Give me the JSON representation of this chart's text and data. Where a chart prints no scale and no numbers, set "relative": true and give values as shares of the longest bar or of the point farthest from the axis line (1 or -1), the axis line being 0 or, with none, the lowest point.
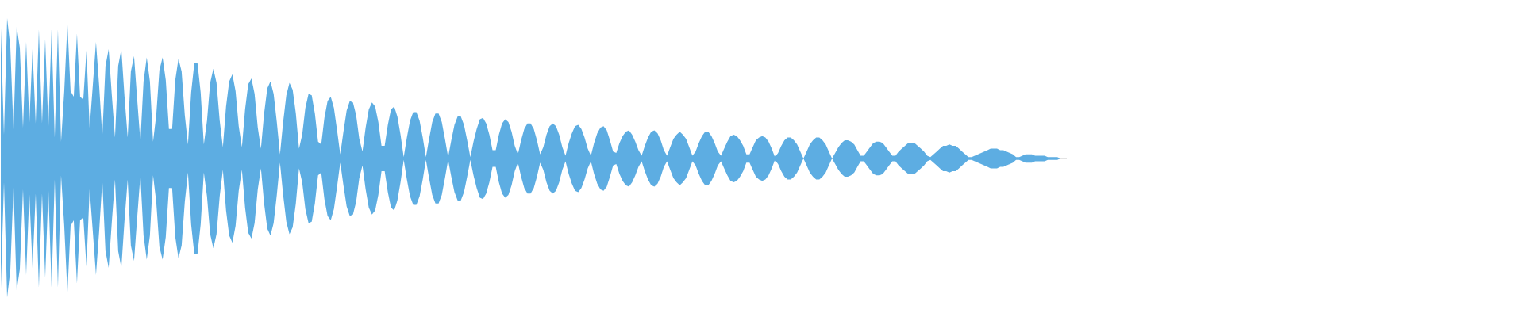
{
  "chart_data": {
    "type": "area",
    "relative": true,
    "categories": [
      null,
      null,
      null,
      null,
      null,
      null,
      null,
      null,
      null,
      null,
      null,
      null,
      null,
      null,
      null,
      null,
      null,
      null,
      null,
      null,
      null,
      null,
      null,
      null,
      null,
      null,
      null,
      null,
      null,
      null,
      null,
      null,
      null,
      null,
      null,
      null,
      null,
      null,
      null,
      null,
      null,
      null,
      null,
      null,
      null,
      null,
      null,
      null,
      null,
      null,
      null,
      null,
      null,
      null,
      null,
      null,
      null,
      null,
      null,
      null,
      null,
      null,
      null,
      null,
      null,
      null,
      null,
      null,
      null,
      null,
      null,
      null,
      null,
      null,
      null,
      null,
      null,
      null,
      null,
      null,
      null,
      null,
      null,
      null,
      null,
      null,
      null,
      null,
      null,
      null,
      null,
      null,
      null,
      null,
      null,
      null,
      null,
      null,
      null,
      null,
      null,
      null,
      null,
      null,
      null,
      null,
      null,
      null,
      null,
      null,
      null,
      null,
      null,
      null,
      null,
      null,
      null,
      null,
      null,
      null,
      null,
      null,
      null,
      null,
      null,
      null,
      null,
      null,
      null,
      null,
      null,
      null,
      null,
      null,
      null,
      null,
      null,
      null,
      null,
      null,
      null,
      null,
      null,
      null,
      null,
      null,
      null,
      null,
      null,
      null,
      null,
      null,
      null,
      null,
      null,
      null,
      null,
      null,
      null,
      null,
      null,
      null,
      null,
      null,
      null,
      null,
      null,
      null,
      null,
      null,
      null,
      null,
      null,
      null,
      null,
      null,
      null,
      null,
      null,
      null,
      null,
      null,
      null,
      null,
      null,
      null,
      null,
      null,
      null,
      null,
      null,
      null,
      null,
      null,
      null,
      null,
      null,
      null,
      null,
      null,
      null,
      null,
      null,
      null,
      null,
      null,
      null,
      null,
      null,
      null,
      null,
      null,
      null,
      null,
      null,
      null,
      null,
      null,
      null,
      null,
      null,
      null,
      null,
      null,
      null,
      null,
      null,
      null,
      null,
      null,
      null,
      null,
      null,
      null,
      null,
      null,
      null,
      null,
      null,
      null,
      null,
      null,
      null,
      null,
      null,
      null,
      null,
      null,
      null,
      null,
      null,
      null,
      null,
      null,
      null,
      null,
      null,
      null,
      null,
      null,
      null,
      null,
      null,
      null,
      null,
      null,
      null,
      null,
      null,
      null,
      null,
      null,
      null,
      null,
      null,
      null,
      null,
      null,
      null,
      null,
      null,
      null,
      null,
      null,
      null,
      null,
      null,
      null,
      null,
      null,
      null,
      null,
      null,
      null,
      null,
      null,
      null,
      null,
      null,
      null,
      null,
      null,
      null,
      null,
      null,
      null,
      null,
      null,
      null,
      null,
      null,
      null,
      null,
      null,
      null,
      null,
      null,
      null,
      null,
      null,
      null,
      null,
      null,
      null,
      null,
      null,
      null,
      null,
      null,
      null,
      null,
      null,
      null,
      null,
      null,
      null,
      null
    ],
    "series": [
      {
        "color": "#5dade2",
        "values": [
          0.93,
          0.17,
          1,
          0.8,
          0.2,
          0.94,
          0.79,
          0.22,
          0.83,
          0.25,
          0.78,
          0.25,
          0.92,
          0.25,
          0.85,
          0.22,
          0.92,
          0.15,
          0.92,
          0.12,
          0.48,
          0.96,
          0.48,
          0.44,
          0.89,
          0.44,
          0.42,
          0.77,
          0.22,
          0.52,
          0.83,
          0.52,
          0.16,
          0.66,
          0.78,
          0.45,
          0.15,
          0.66,
          0.78,
          0.44,
          0.15,
          0.62,
          0.73,
          0.42,
          0.12,
          0.55,
          0.72,
          0.55,
          0.12,
          0.31,
          0.63,
          0.72,
          0.56,
          0.21,
          0.21,
          0.56,
          0.71,
          0.62,
          0.31,
          0.1,
          0.47,
          0.68,
          0.68,
          0.47,
          0.1,
          0.27,
          0.54,
          0.64,
          0.54,
          0.27,
          0.08,
          0.37,
          0.55,
          0.6,
          0.48,
          0.23,
          0.08,
          0.35,
          0.53,
          0.57,
          0.46,
          0.22,
          0.07,
          0.32,
          0.5,
          0.55,
          0.46,
          0.26,
          0.03,
          0.26,
          0.45,
          0.54,
          0.49,
          0.32,
          0.07,
          0.17,
          0.36,
          0.46,
          0.45,
          0.32,
          0.12,
          0.1,
          0.29,
          0.41,
          0.44,
          0.36,
          0.2,
          0.03,
          0.19,
          0.34,
          0.41,
          0.4,
          0.31,
          0.14,
          0.05,
          0.22,
          0.35,
          0.4,
          0.37,
          0.26,
          0.09,
          0.09,
          0.24,
          0.35,
          0.37,
          0.3,
          0.17,
          0.01,
          0.15,
          0.27,
          0.33,
          0.33,
          0.27,
          0.15,
          0.01,
          0.14,
          0.26,
          0.32,
          0.32,
          0.26,
          0.14,
          0.01,
          0.13,
          0.24,
          0.3,
          0.3,
          0.24,
          0.13,
          0.01,
          0.12,
          0.21,
          0.28,
          0.29,
          0.25,
          0.17,
          0.06,
          0.06,
          0.17,
          0.25,
          0.28,
          0.26,
          0.19,
          0.09,
          0.03,
          0.13,
          0.21,
          0.25,
          0.25,
          0.21,
          0.13,
          0.03,
          0.08,
          0.17,
          0.23,
          0.25,
          0.23,
          0.17,
          0.08,
          0.02,
          0.11,
          0.18,
          0.23,
          0.24,
          0.21,
          0.15,
          0.07,
          0.02,
          0.11,
          0.18,
          0.22,
          0.23,
          0.2,
          0.13,
          0.05,
          0.04,
          0.11,
          0.16,
          0.19,
          0.2,
          0.17,
          0.12,
          0.06,
          0.02,
          0.09,
          0.15,
          0.19,
          0.2,
          0.18,
          0.13,
          0.06,
          0.02,
          0.08,
          0.14,
          0.17,
          0.19,
          0.17,
          0.14,
          0.08,
          0.02,
          0.05,
          0.11,
          0.16,
          0.19,
          0.19,
          0.16,
          0.11,
          0.05,
          0.02,
          0.07,
          0.12,
          0.16,
          0.17,
          0.16,
          0.13,
          0.09,
          0.03,
          0.03,
          0.08,
          0.13,
          0.15,
          0.16,
          0.15,
          0.12,
          0.07,
          0.01,
          0.04,
          0.09,
          0.13,
          0.15,
          0.15,
          0.13,
          0.1,
          0.05,
          0,
          0.05,
          0.1,
          0.13,
          0.15,
          0.15,
          0.13,
          0.1,
          0.05,
          0,
          0.04,
          0.08,
          0.11,
          0.13,
          0.13,
          0.12,
          0.1,
          0.06,
          0.02,
          0.02,
          0.05,
          0.08,
          0.11,
          0.12,
          0.12,
          0.11,
          0.08,
          0.05,
          0.02,
          0.02,
          0.05,
          0.07,
          0.09,
          0.11,
          0.11,
          0.11,
          0.09,
          0.07,
          0.05,
          0.02,
          0.01,
          0.03,
          0.05,
          0.07,
          0.09,
          0.09,
          0.1,
          0.09,
          0.09,
          0.07,
          0.05,
          0.03,
          0.01,
          0.01,
          0.02,
          0.03,
          0.04,
          0.05,
          0.06,
          0.07,
          0.07,
          0.07,
          0.06,
          0.06,
          0.05,
          0.04,
          0.03,
          0.01,
          0.01,
          0.02,
          0.03,
          0.03,
          0.03,
          0.02,
          0.02,
          0.02,
          0.02,
          0.01,
          0.01,
          0.01,
          0.01,
          0,
          0,
          0
        ]
      },
      {
        "color": "#5dade2",
        "values": [
          -0.93,
          -0.17,
          -0.99,
          -0.8,
          -0.2,
          -0.94,
          -0.79,
          -0.22,
          -0.83,
          -0.25,
          -0.78,
          -0.25,
          -0.92,
          -0.25,
          -0.85,
          -0.22,
          -0.92,
          -0.15,
          -0.92,
          -0.12,
          -0.48,
          -0.96,
          -0.48,
          -0.44,
          -0.89,
          -0.44,
          -0.42,
          -0.77,
          -0.22,
          -0.52,
          -0.83,
          -0.52,
          -0.16,
          -0.66,
          -0.78,
          -0.45,
          -0.15,
          -0.66,
          -0.78,
          -0.44,
          -0.15,
          -0.62,
          -0.73,
          -0.42,
          -0.12,
          -0.55,
          -0.72,
          -0.55,
          -0.12,
          -0.31,
          -0.63,
          -0.72,
          -0.56,
          -0.21,
          -0.21,
          -0.56,
          -0.71,
          -0.62,
          -0.31,
          -0.1,
          -0.47,
          -0.68,
          -0.68,
          -0.47,
          -0.1,
          -0.27,
          -0.54,
          -0.64,
          -0.54,
          -0.27,
          -0.08,
          -0.37,
          -0.55,
          -0.6,
          -0.48,
          -0.23,
          -0.08,
          -0.35,
          -0.53,
          -0.57,
          -0.46,
          -0.22,
          -0.07,
          -0.32,
          -0.5,
          -0.55,
          -0.46,
          -0.26,
          -0.03,
          -0.26,
          -0.45,
          -0.54,
          -0.49,
          -0.32,
          -0.07,
          -0.17,
          -0.36,
          -0.46,
          -0.45,
          -0.32,
          -0.12,
          -0.1,
          -0.29,
          -0.41,
          -0.44,
          -0.36,
          -0.2,
          -0.03,
          -0.19,
          -0.34,
          -0.41,
          -0.4,
          -0.31,
          -0.14,
          -0.05,
          -0.22,
          -0.35,
          -0.4,
          -0.37,
          -0.26,
          -0.09,
          -0.09,
          -0.24,
          -0.35,
          -0.37,
          -0.3,
          -0.17,
          -0.01,
          -0.15,
          -0.27,
          -0.33,
          -0.33,
          -0.27,
          -0.15,
          -0.01,
          -0.14,
          -0.26,
          -0.32,
          -0.32,
          -0.26,
          -0.14,
          -0.01,
          -0.13,
          -0.24,
          -0.3,
          -0.3,
          -0.24,
          -0.13,
          -0.01,
          -0.12,
          -0.21,
          -0.28,
          -0.29,
          -0.25,
          -0.17,
          -0.06,
          -0.06,
          -0.17,
          -0.25,
          -0.28,
          -0.26,
          -0.19,
          -0.09,
          -0.03,
          -0.13,
          -0.21,
          -0.25,
          -0.25,
          -0.21,
          -0.13,
          -0.03,
          -0.08,
          -0.17,
          -0.23,
          -0.25,
          -0.23,
          -0.17,
          -0.08,
          -0.02,
          -0.11,
          -0.18,
          -0.23,
          -0.24,
          -0.21,
          -0.15,
          -0.07,
          -0.02,
          -0.11,
          -0.18,
          -0.22,
          -0.23,
          -0.2,
          -0.13,
          -0.05,
          -0.04,
          -0.11,
          -0.16,
          -0.19,
          -0.2,
          -0.17,
          -0.12,
          -0.06,
          -0.02,
          -0.09,
          -0.15,
          -0.19,
          -0.2,
          -0.18,
          -0.13,
          -0.06,
          -0.02,
          -0.08,
          -0.14,
          -0.17,
          -0.19,
          -0.17,
          -0.14,
          -0.08,
          -0.02,
          -0.05,
          -0.11,
          -0.16,
          -0.19,
          -0.19,
          -0.16,
          -0.11,
          -0.05,
          -0.02,
          -0.07,
          -0.12,
          -0.16,
          -0.17,
          -0.16,
          -0.13,
          -0.09,
          -0.03,
          -0.03,
          -0.08,
          -0.13,
          -0.15,
          -0.16,
          -0.15,
          -0.12,
          -0.07,
          -0.01,
          -0.04,
          -0.09,
          -0.13,
          -0.15,
          -0.15,
          -0.13,
          -0.1,
          -0.05,
          0,
          -0.05,
          -0.1,
          -0.13,
          -0.15,
          -0.15,
          -0.13,
          -0.1,
          -0.05,
          0,
          -0.04,
          -0.08,
          -0.11,
          -0.13,
          -0.13,
          -0.12,
          -0.1,
          -0.06,
          -0.02,
          -0.02,
          -0.05,
          -0.08,
          -0.11,
          -0.12,
          -0.12,
          -0.11,
          -0.08,
          -0.05,
          -0.02,
          -0.02,
          -0.05,
          -0.07,
          -0.09,
          -0.11,
          -0.11,
          -0.11,
          -0.09,
          -0.07,
          -0.05,
          -0.02,
          -0.01,
          -0.03,
          -0.05,
          -0.07,
          -0.09,
          -0.09,
          -0.1,
          -0.09,
          -0.09,
          -0.07,
          -0.05,
          -0.03,
          -0.01,
          -0.01,
          -0.02,
          -0.03,
          -0.04,
          -0.05,
          -0.06,
          -0.07,
          -0.07,
          -0.07,
          -0.06,
          -0.06,
          -0.05,
          -0.04,
          -0.03,
          -0.01,
          -0.01,
          -0.02,
          -0.03,
          -0.03,
          -0.03,
          -0.02,
          -0.02,
          -0.02,
          -0.02,
          -0.01,
          -0.01,
          -0.01,
          -0.01,
          0,
          0,
          0
        ]
      }
    ]
  }
}
